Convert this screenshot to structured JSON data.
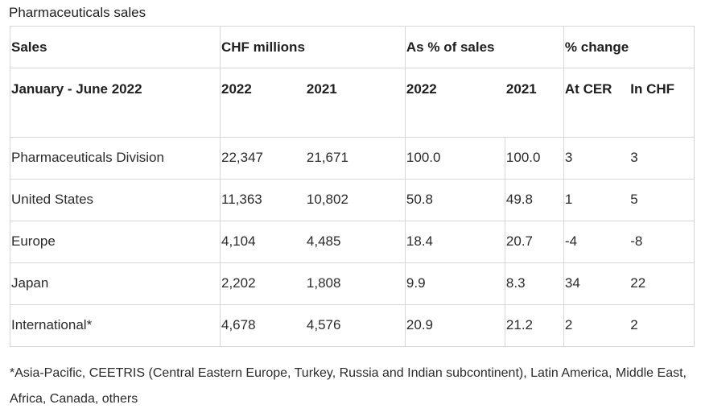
{
  "title": "Pharmaceuticals sales",
  "header": {
    "sales": "Sales",
    "chf_millions": "CHF millions",
    "pct_of_sales": "As % of sales",
    "pct_change": "% change",
    "period": "January - June 2022",
    "y2022": "2022",
    "y2021": "2021",
    "at_cer": "At CER",
    "in_chf": "In CHF"
  },
  "rows": [
    {
      "name": "Pharmaceuticals Division",
      "chf_2022": "22,347",
      "chf_2021": "21,671",
      "pct_2022": "100.0",
      "pct_2021": "100.0",
      "cer": "3",
      "chf": "3"
    },
    {
      "name": "United States",
      "chf_2022": "11,363",
      "chf_2021": "10,802",
      "pct_2022": "50.8",
      "pct_2021": "49.8",
      "cer": "1",
      "chf": "5"
    },
    {
      "name": "Europe",
      "chf_2022": "4,104",
      "chf_2021": "4,485",
      "pct_2022": "18.4",
      "pct_2021": "20.7",
      "cer": "-4",
      "chf": "-8"
    },
    {
      "name": "Japan",
      "chf_2022": "2,202",
      "chf_2021": "1,808",
      "pct_2022": "9.9",
      "pct_2021": "8.3",
      "cer": "34",
      "chf": "22"
    },
    {
      "name": "International*",
      "chf_2022": "4,678",
      "chf_2021": "4,576",
      "pct_2022": "20.9",
      "pct_2021": "21.2",
      "cer": "2",
      "chf": "2"
    }
  ],
  "footnote": "*Asia-Pacific, CEETRIS (Central Eastern Europe, Turkey, Russia and Indian subcontinent), Latin America, Middle East, Africa, Canada, others"
}
